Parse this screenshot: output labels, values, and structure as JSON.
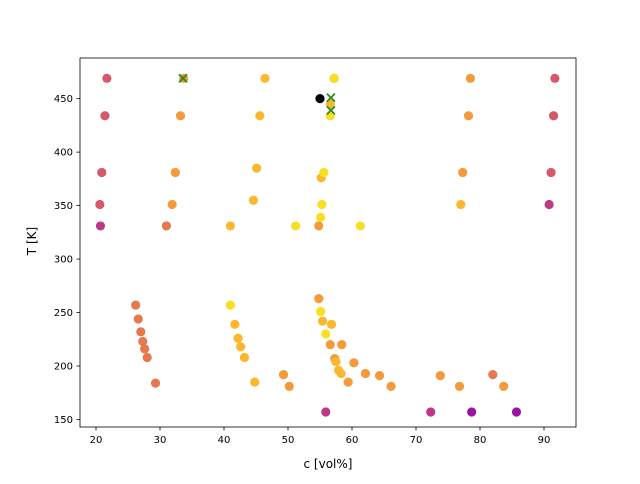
{
  "chart_data": {
    "type": "scatter",
    "title": "",
    "xlabel": "c [vol%]",
    "ylabel": "T [K]",
    "xlim": [
      17.5,
      95
    ],
    "ylim": [
      143,
      488
    ],
    "xticks": [
      20,
      30,
      40,
      50,
      60,
      70,
      80,
      90
    ],
    "yticks": [
      150,
      200,
      250,
      300,
      350,
      400,
      450
    ],
    "grid": false,
    "legend": "none",
    "colors": {
      "yellow": "#f8df24",
      "gold": "#fbb72e",
      "orange": "#f49a3a",
      "salmon": "#e5784f",
      "rose": "#d6586a",
      "magenta": "#bc3a85",
      "purple": "#9914a6",
      "black": "#000000",
      "marker_x": "#2e8b22"
    },
    "series": [
      {
        "color": "#d6586a",
        "points": [
          [
            21.7,
            469
          ],
          [
            21.4,
            434
          ],
          [
            20.9,
            381
          ],
          [
            20.6,
            351
          ],
          [
            91.7,
            469
          ],
          [
            91.5,
            434
          ],
          [
            91.1,
            381
          ],
          [
            57.2,
            469
          ]
        ]
      },
      {
        "color": "#f49a3a",
        "points": [
          [
            33.7,
            469
          ],
          [
            33.2,
            434
          ],
          [
            32.4,
            381
          ],
          [
            31.9,
            351
          ],
          [
            78.5,
            469
          ],
          [
            78.2,
            434
          ],
          [
            77.3,
            381
          ],
          [
            54.8,
            331
          ],
          [
            54.8,
            263
          ],
          [
            56.6,
            220
          ],
          [
            57.3,
            207
          ],
          [
            58.4,
            220
          ],
          [
            59.4,
            185
          ],
          [
            60.3,
            203
          ],
          [
            62.1,
            193
          ],
          [
            64.3,
            191
          ],
          [
            66.1,
            181
          ],
          [
            73.8,
            191
          ],
          [
            76.8,
            181
          ],
          [
            83.7,
            181
          ],
          [
            49.3,
            192
          ],
          [
            50.2,
            181
          ]
        ]
      },
      {
        "color": "#fbb72e",
        "points": [
          [
            46.4,
            469
          ],
          [
            45.6,
            434
          ],
          [
            45.1,
            385
          ],
          [
            44.6,
            355
          ],
          [
            41.0,
            331
          ],
          [
            77.0,
            351
          ],
          [
            55.2,
            376
          ],
          [
            56.6,
            445
          ],
          [
            55.4,
            242
          ],
          [
            56.8,
            239
          ],
          [
            57.5,
            204
          ],
          [
            57.9,
            196
          ],
          [
            58.3,
            193
          ],
          [
            41.7,
            239
          ],
          [
            42.2,
            226
          ],
          [
            42.6,
            218
          ],
          [
            43.2,
            208
          ],
          [
            44.8,
            185
          ]
        ]
      },
      {
        "color": "#f8df24",
        "points": [
          [
            57.2,
            469
          ],
          [
            56.6,
            434
          ],
          [
            55.6,
            381
          ],
          [
            55.3,
            351
          ],
          [
            55.1,
            339
          ],
          [
            51.2,
            331
          ],
          [
            61.3,
            331
          ],
          [
            41.0,
            257
          ],
          [
            55.1,
            251
          ],
          [
            55.9,
            230
          ]
        ]
      },
      {
        "color": "#e5784f",
        "points": [
          [
            26.2,
            257
          ],
          [
            26.6,
            244
          ],
          [
            27.0,
            232
          ],
          [
            27.3,
            223
          ],
          [
            27.6,
            216
          ],
          [
            28.0,
            208
          ],
          [
            29.3,
            184
          ],
          [
            31.0,
            331
          ],
          [
            82.0,
            192
          ]
        ]
      },
      {
        "color": "#bc3a85",
        "points": [
          [
            20.7,
            331
          ],
          [
            90.8,
            351
          ],
          [
            55.9,
            157
          ],
          [
            72.3,
            157
          ]
        ]
      },
      {
        "color": "#9914a6",
        "points": [
          [
            78.7,
            157
          ],
          [
            85.7,
            157
          ]
        ]
      },
      {
        "color": "#000000",
        "points": [
          [
            55.0,
            450
          ]
        ]
      }
    ],
    "x_markers": [
      [
        33.6,
        469
      ],
      [
        56.7,
        451
      ],
      [
        56.7,
        439
      ]
    ]
  }
}
